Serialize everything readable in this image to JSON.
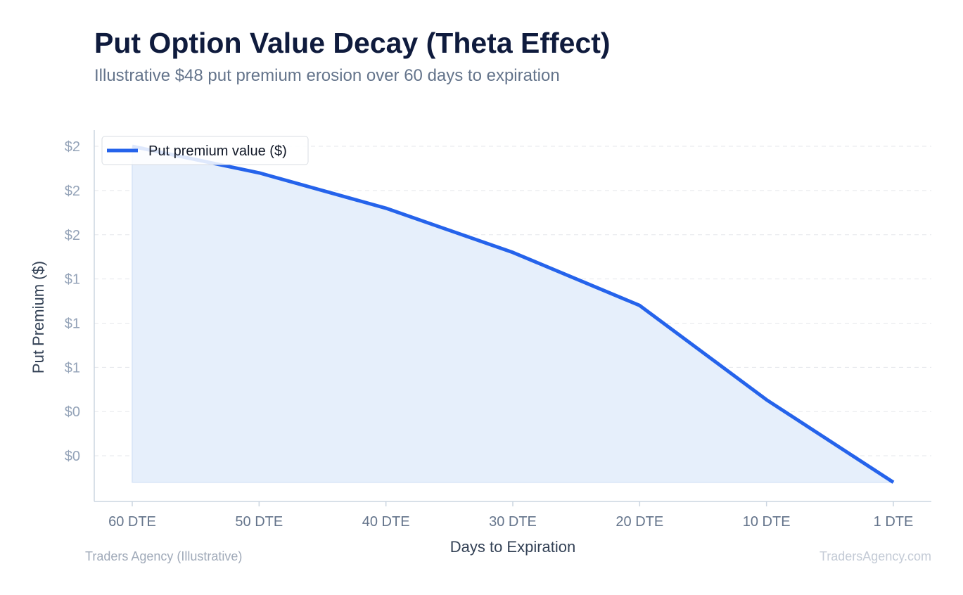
{
  "header": {
    "title": "Put Option Value Decay (Theta Effect)",
    "subtitle": "Illustrative $48 put premium erosion over 60 days to expiration"
  },
  "footer": {
    "source": "Traders Agency (Illustrative)",
    "watermark": "TradersAgency.com"
  },
  "colors": {
    "line": "#2563eb",
    "fill": "#e6effb",
    "grid": "#e5e7eb",
    "axis": "#cbd5e1"
  },
  "chart_data": {
    "type": "area",
    "title": "Put Option Value Decay (Theta Effect)",
    "subtitle": "Illustrative $48 put premium erosion over 60 days to expiration",
    "xlabel": "Days to Expiration",
    "ylabel": "Put Premium ($)",
    "categories": [
      "60 DTE",
      "50 DTE",
      "40 DTE",
      "30 DTE",
      "20 DTE",
      "10 DTE",
      "1 DTE"
    ],
    "x": [
      60,
      50,
      40,
      30,
      20,
      10,
      1
    ],
    "y_ticks": [
      {
        "value": 0.2,
        "label": "$0"
      },
      {
        "value": 0.5,
        "label": "$0"
      },
      {
        "value": 0.8,
        "label": "$1"
      },
      {
        "value": 1.1,
        "label": "$1"
      },
      {
        "value": 1.4,
        "label": "$1"
      },
      {
        "value": 1.7,
        "label": "$2"
      },
      {
        "value": 2.0,
        "label": "$2"
      },
      {
        "value": 2.3,
        "label": "$2"
      }
    ],
    "ylim": [
      -0.11,
      2.41
    ],
    "series": [
      {
        "name": "Put premium value ($)",
        "values": [
          2.3,
          2.12,
          1.88,
          1.58,
          1.22,
          0.58,
          0.02
        ]
      }
    ],
    "legend_position": "top-left",
    "grid": true
  }
}
